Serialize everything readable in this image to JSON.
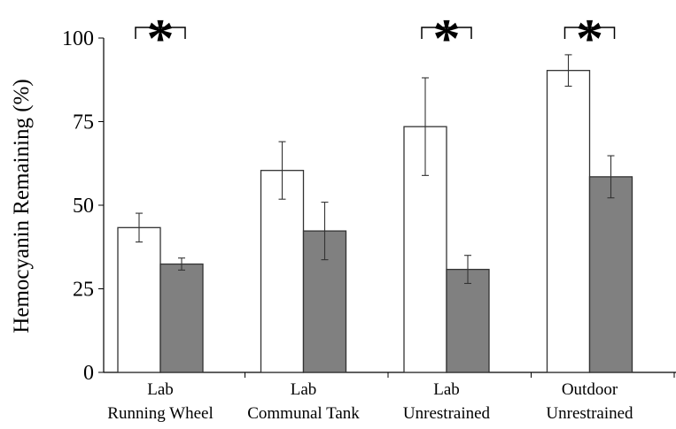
{
  "chart_data": {
    "type": "bar",
    "ylabel": "Hemocyanin Remaining (%)",
    "ylim": [
      0,
      100
    ],
    "yticks": [
      "0",
      "25",
      "50",
      "75",
      "100"
    ],
    "categories": [
      {
        "line1": "Lab",
        "line2": "Running Wheel"
      },
      {
        "line1": "Lab",
        "line2": "Communal Tank"
      },
      {
        "line1": "Lab",
        "line2": "Unrestrained"
      },
      {
        "line1": "Outdoor",
        "line2": "Unrestrained"
      }
    ],
    "series": [
      {
        "color": "#ffffff",
        "values": [
          43.3,
          60.4,
          73.5,
          90.3
        ],
        "errors": [
          4.3,
          8.6,
          14.6,
          4.7
        ]
      },
      {
        "color": "#808080",
        "values": [
          32.4,
          42.3,
          30.8,
          58.5
        ],
        "errors": [
          1.8,
          8.6,
          4.2,
          6.3
        ]
      }
    ],
    "significance": [
      "*",
      "",
      "*",
      "*"
    ],
    "grid": false,
    "legend": "none"
  }
}
